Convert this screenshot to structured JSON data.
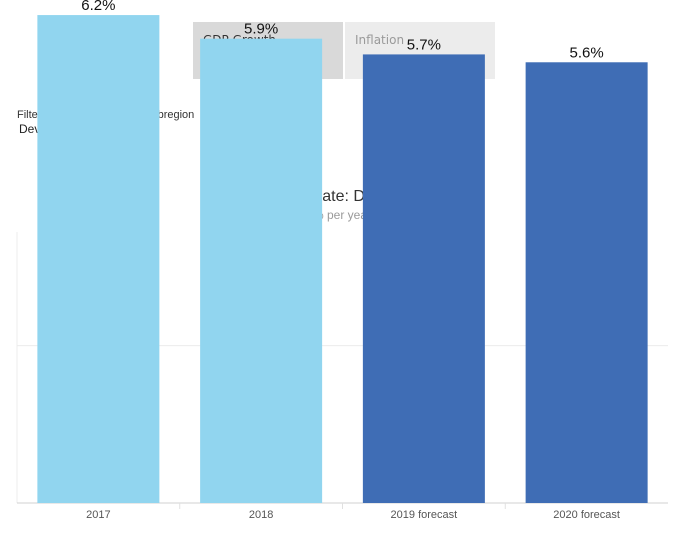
{
  "tabs": {
    "gdp_growth": "GDP Growth",
    "inflation": "Inflation"
  },
  "filter": {
    "label": "Filter by Member Country/Subregion",
    "value": "Developing Asia"
  },
  "colors": {
    "actual": "#91d5ef",
    "forecast": "#3f6db5",
    "grid": "#ececec"
  },
  "chart_data": {
    "type": "bar",
    "title": "GDP Growth Rate: Developing Asia",
    "subtitle": "(% per year)",
    "categories": [
      "2017",
      "2018",
      "2019 forecast",
      "2020 forecast"
    ],
    "values": [
      6.2,
      5.9,
      5.7,
      5.6
    ],
    "data_labels": [
      "6.2%",
      "5.9%",
      "5.7%",
      "5.6%"
    ],
    "kinds": [
      "actual",
      "actual",
      "forecast",
      "forecast"
    ],
    "ylim": [
      0,
      7
    ],
    "grid": true,
    "xlabel": "",
    "ylabel": ""
  }
}
